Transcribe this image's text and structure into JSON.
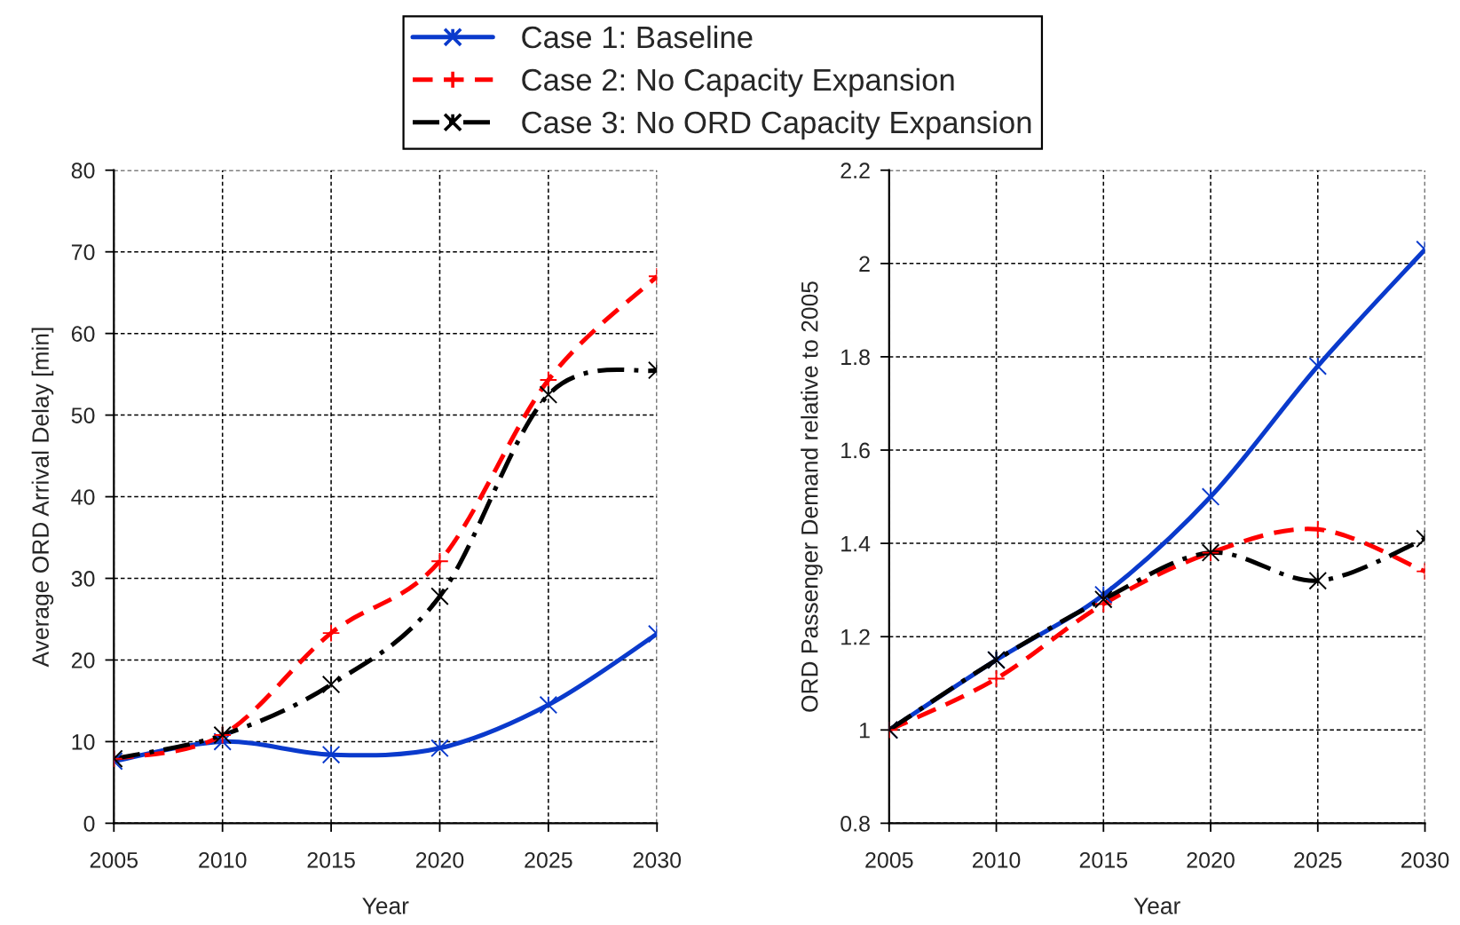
{
  "chart_data": [
    {
      "type": "line",
      "xlabel": "Year",
      "ylabel": "Average ORD Arrival Delay [min]",
      "x": [
        2005,
        2010,
        2015,
        2020,
        2025,
        2030
      ],
      "series": [
        {
          "name": "Case 1: Baseline",
          "color": "#0a3acc",
          "marker": "cross",
          "line_style": "solid",
          "values": [
            7.6,
            10.0,
            8.4,
            9.2,
            14.5,
            23.2
          ]
        },
        {
          "name": "Case 2: No Capacity Expansion",
          "color": "#ff0000",
          "marker": "plus",
          "line_style": "dashed",
          "values": [
            7.9,
            10.8,
            23.3,
            32.1,
            54.3,
            67.0
          ]
        },
        {
          "name": "Case 3: No ORD Capacity Expansion",
          "color": "#000000",
          "marker": "cross",
          "line_style": "dashdot",
          "values": [
            7.9,
            10.8,
            17.0,
            27.8,
            52.5,
            55.5
          ]
        }
      ],
      "xlim": [
        2005,
        2030
      ],
      "xticks": [
        2005,
        2010,
        2015,
        2020,
        2025,
        2030
      ],
      "ylim": [
        0,
        80
      ],
      "yticks": [
        0,
        10,
        20,
        30,
        40,
        50,
        60,
        70,
        80
      ],
      "grid": true,
      "legend": "top"
    },
    {
      "type": "line",
      "xlabel": "Year",
      "ylabel": "ORD Passenger Demand relative to 2005",
      "x": [
        2005,
        2010,
        2015,
        2020,
        2025,
        2030
      ],
      "series": [
        {
          "color": "#0a3acc",
          "marker": "cross",
          "line_style": "solid",
          "values": [
            1.0,
            1.15,
            1.29,
            1.5,
            1.78,
            2.03
          ]
        },
        {
          "color": "#ff0000",
          "marker": "plus",
          "line_style": "dashed",
          "values": [
            1.0,
            1.11,
            1.27,
            1.38,
            1.43,
            1.34
          ]
        },
        {
          "color": "#000000",
          "marker": "cross",
          "line_style": "dashdot",
          "values": [
            1.0,
            1.15,
            1.28,
            1.38,
            1.32,
            1.41
          ]
        }
      ],
      "xlim": [
        2005,
        2030
      ],
      "xticks": [
        2005,
        2010,
        2015,
        2020,
        2025,
        2030
      ],
      "ylim": [
        0.8,
        2.2
      ],
      "yticks": [
        0.8,
        1,
        1.2,
        1.4,
        1.6,
        1.8,
        2,
        2.2
      ],
      "grid": true
    }
  ]
}
